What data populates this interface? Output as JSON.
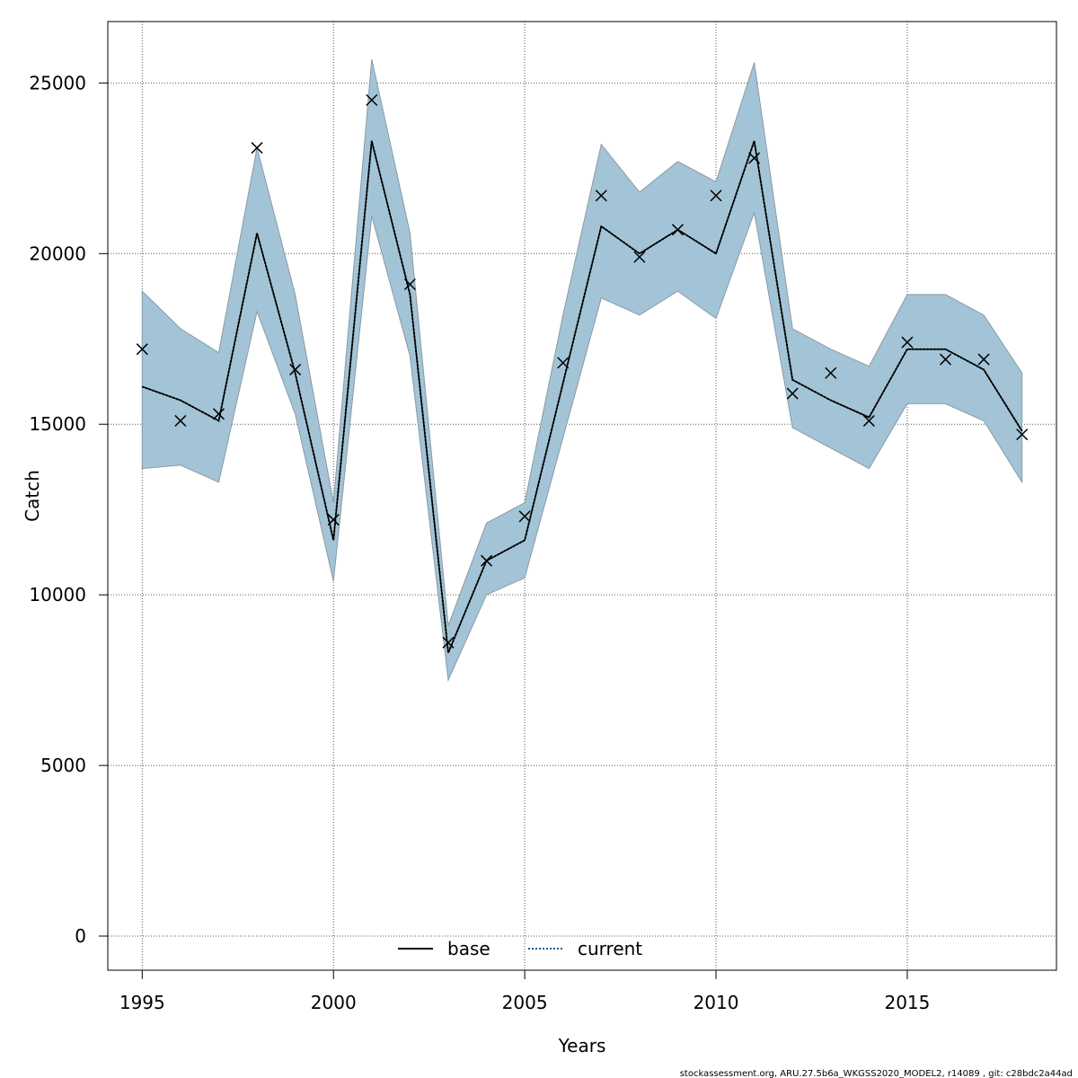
{
  "chart_data": {
    "type": "line",
    "xlabel": "Years",
    "ylabel": "Catch",
    "xlim": [
      1994.1,
      2018.9
    ],
    "ylim": [
      -1000,
      26800
    ],
    "x_ticks": [
      1995,
      2000,
      2005,
      2010,
      2015
    ],
    "y_ticks": [
      0,
      5000,
      10000,
      15000,
      20000,
      25000
    ],
    "grid": true,
    "legend_position": "bottom-center",
    "colors": {
      "band": "#a3c4d6",
      "band_edge": "#8a9aa5",
      "base": "#000000",
      "current": "#000000",
      "current_legend": "#1f5f8f",
      "points": "#000000",
      "grid": "#555555"
    },
    "x": [
      1995,
      1996,
      1997,
      1998,
      1999,
      2000,
      2001,
      2002,
      2003,
      2004,
      2005,
      2006,
      2007,
      2008,
      2009,
      2010,
      2011,
      2012,
      2013,
      2014,
      2015,
      2016,
      2017,
      2018
    ],
    "series": [
      {
        "name": "base",
        "style": "solid",
        "values": [
          16100,
          15700,
          15100,
          20600,
          16500,
          11600,
          23300,
          18800,
          8300,
          11000,
          11600,
          16200,
          20800,
          20000,
          20700,
          20000,
          23300,
          16300,
          15700,
          15200,
          17200,
          17200,
          16600,
          14800
        ]
      },
      {
        "name": "current",
        "style": "dotted",
        "values": [
          16100,
          15700,
          15100,
          20600,
          16500,
          11600,
          23300,
          18800,
          8300,
          11000,
          11600,
          16200,
          20800,
          20000,
          20700,
          20000,
          23300,
          16300,
          15700,
          15200,
          17200,
          17200,
          16600,
          14800
        ]
      }
    ],
    "band_upper": [
      18900,
      17800,
      17100,
      23100,
      18800,
      12700,
      25700,
      20600,
      9100,
      12100,
      12700,
      18200,
      23200,
      21800,
      22700,
      22100,
      25600,
      17800,
      17200,
      16700,
      18800,
      18800,
      18200,
      16500
    ],
    "band_lower": [
      13700,
      13800,
      13300,
      18300,
      15300,
      10400,
      21100,
      17000,
      7500,
      10000,
      10500,
      14600,
      18700,
      18200,
      18900,
      18100,
      21200,
      14900,
      14300,
      13700,
      15600,
      15600,
      15100,
      13300
    ],
    "observed": [
      17200,
      15100,
      15300,
      23100,
      16600,
      12200,
      24500,
      19100,
      8600,
      11000,
      12300,
      16800,
      21700,
      19900,
      20700,
      21700,
      22800,
      15900,
      16500,
      15100,
      17400,
      16900,
      16900,
      14700
    ],
    "legend": [
      "base",
      "current"
    ],
    "footer": "stockassessment.org, ARU.27.5b6a_WKGSS2020_MODEL2, r14089 , git: c28bdc2a44ad"
  }
}
